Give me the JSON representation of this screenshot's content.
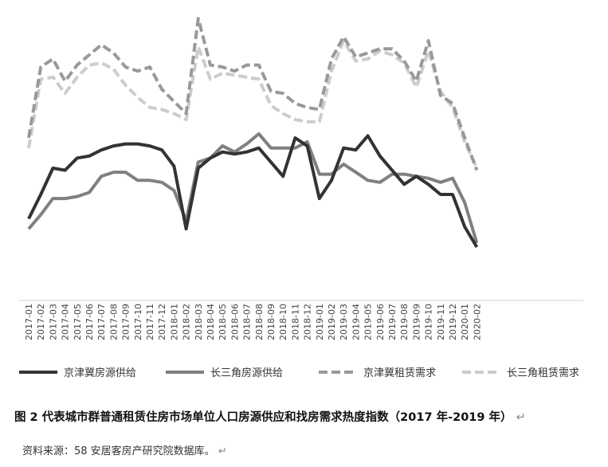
{
  "caption": {
    "text": "图 2 代表城市群普通租赁住房市场单位人口房源供应和找房需求热度指数（2017 年-2019 年）",
    "return_mark": "↵"
  },
  "source": {
    "text": "资料来源：58 安居客房产研究院数据库。",
    "return_mark": "↵"
  },
  "chart_data": {
    "type": "line",
    "title": "",
    "xlabel": "",
    "ylabel": "",
    "grid": false,
    "legend_position": "bottom",
    "y_axis_visible": false,
    "x_axis_visible": true,
    "ylim": [
      0,
      100
    ],
    "categories": [
      "2017-01",
      "2017-02",
      "2017-03",
      "2017-04",
      "2017-05",
      "2017-06",
      "2017-07",
      "2017-08",
      "2017-09",
      "2017-10",
      "2017-11",
      "2017-12",
      "2018-01",
      "2018-02",
      "2018-03",
      "2018-04",
      "2018-05",
      "2018-06",
      "2018-07",
      "2018-08",
      "2018-09",
      "2018-10",
      "2018-11",
      "2018-12",
      "2019-01",
      "2019-02",
      "2019-03",
      "2019-04",
      "2019-05",
      "2019-06",
      "2019-07",
      "2019-08",
      "2019-09",
      "2019-10",
      "2019-11",
      "2019-12",
      "2020-01",
      "2020-02"
    ],
    "series": [
      {
        "name": "京津冀房源供给",
        "color": "#333333",
        "dash": "solid",
        "values": [
          20,
          32,
          45,
          44,
          50,
          51,
          54,
          56,
          57,
          57,
          56,
          54,
          46,
          15,
          45,
          50,
          53,
          52,
          53,
          55,
          48,
          41,
          60,
          56,
          30,
          39,
          55,
          54,
          61,
          51,
          44,
          37,
          41,
          37,
          32,
          32,
          16,
          6
        ]
      },
      {
        "name": "长三角房源供给",
        "color": "#808080",
        "dash": "solid",
        "values": [
          15,
          22,
          30,
          30,
          31,
          33,
          41,
          43,
          43,
          39,
          39,
          38,
          34,
          19,
          48,
          50,
          56,
          53,
          57,
          62,
          55,
          55,
          55,
          58,
          42,
          42,
          47,
          43,
          39,
          38,
          42,
          42,
          41,
          40,
          38,
          40,
          28,
          8
        ]
      },
      {
        "name": "京津冀租赁需求",
        "color": "#999999",
        "dash": "dashed",
        "values": [
          60,
          95,
          99,
          88,
          96,
          101,
          106,
          102,
          95,
          93,
          95,
          84,
          78,
          72,
          119,
          96,
          95,
          93,
          96,
          96,
          83,
          82,
          77,
          75,
          74,
          99,
          110,
          100,
          102,
          104,
          104,
          98,
          88,
          108,
          81,
          77,
          60,
          44
        ]
      },
      {
        "name": "长三角租赁需求",
        "color": "#cccccc",
        "dash": "dashed",
        "values": [
          55,
          89,
          90,
          82,
          90,
          96,
          97,
          94,
          86,
          80,
          75,
          74,
          72,
          69,
          105,
          89,
          92,
          91,
          90,
          89,
          76,
          72,
          69,
          68,
          68,
          93,
          108,
          98,
          99,
          103,
          101,
          97,
          85,
          103,
          83,
          75,
          58,
          45
        ]
      }
    ]
  }
}
